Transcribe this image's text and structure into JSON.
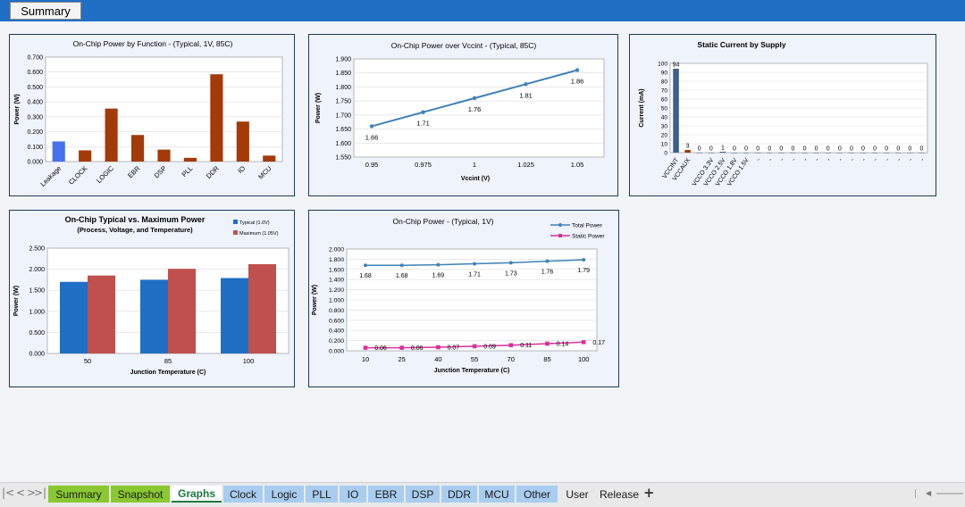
{
  "header": {
    "summary_label": "Summary"
  },
  "colors": {
    "topbar": "#1f6fc5",
    "func_blue": "#4472ee",
    "func_red": "#a33a08",
    "line_blue": "#3f82b7",
    "static_bar": "#3c5e8c",
    "typical": "#1f6fc5",
    "maximum": "#c0504d",
    "static_pink": "#d9309a"
  },
  "chart_data": [
    {
      "type": "bar",
      "title": "On-Chip Power by Function - (Typical, 1V, 85C)",
      "xlabel": "",
      "ylabel": "Power (W)",
      "categories": [
        "Leakage",
        "CLOCK",
        "LOGIC",
        "EBR",
        "DSP",
        "PLL",
        "DDR",
        "IO",
        "MCU"
      ],
      "values": [
        0.135,
        0.075,
        0.355,
        0.178,
        0.08,
        0.025,
        0.585,
        0.268,
        0.04
      ],
      "ylim": [
        0,
        0.7
      ],
      "yticks": [
        "0.000",
        "0.100",
        "0.200",
        "0.300",
        "0.400",
        "0.500",
        "0.600",
        "0.700"
      ],
      "grid": true
    },
    {
      "type": "line",
      "title": "On-Chip Power over Vccint - (Typical, 85C)",
      "xlabel": "Vccint (V)",
      "ylabel": "Power (W)",
      "x": [
        "0.95",
        "0.975",
        "1",
        "1.025",
        "1.05"
      ],
      "values": [
        1.66,
        1.71,
        1.76,
        1.81,
        1.86
      ],
      "labels": [
        "1.66",
        "1.71",
        "1.76",
        "1.81",
        "1.86"
      ],
      "ylim": [
        1.55,
        1.9
      ],
      "yticks": [
        "1.550",
        "1.600",
        "1.650",
        "1.700",
        "1.750",
        "1.800",
        "1.850",
        "1.900"
      ],
      "grid": true
    },
    {
      "type": "bar",
      "title": "Static Current by Supply",
      "xlabel": "",
      "ylabel": "Current (mA)",
      "categories": [
        "VCCINT",
        "VCCAUX",
        "",
        "VCCO 3.3V",
        "VCCO 2.5V",
        "VCCO 1.8V",
        "VCCO 1.5V",
        "-",
        "-",
        "-",
        "-",
        "-",
        "-",
        "-",
        "-",
        "-",
        "-",
        "-",
        "-",
        "-",
        "-",
        "-"
      ],
      "values": [
        94,
        3,
        0,
        0,
        1,
        0,
        0,
        0,
        0,
        0,
        0,
        0,
        0,
        0,
        0,
        0,
        0,
        0,
        0,
        0,
        0,
        0
      ],
      "labels": [
        "94",
        "3",
        "0",
        "0",
        "1",
        "0",
        "0",
        "0",
        "0",
        "0",
        "0",
        "0",
        "0",
        "0",
        "0",
        "0",
        "0",
        "0",
        "0",
        "0",
        "0",
        "0"
      ],
      "ylim": [
        0,
        100
      ],
      "yticks": [
        "0",
        "10",
        "20",
        "30",
        "40",
        "50",
        "60",
        "70",
        "80",
        "90",
        "100"
      ],
      "grid": true
    },
    {
      "type": "bar",
      "title": "On-Chip Typical vs. Maximum Power",
      "subtitle": "(Process, Voltage, and Temperature)",
      "xlabel": "Junction Temperature (C)",
      "ylabel": "Power (W)",
      "categories": [
        "50",
        "85",
        "100"
      ],
      "series": [
        {
          "name": "Typical (1.0V)",
          "values": [
            1.7,
            1.75,
            1.79
          ]
        },
        {
          "name": "Maximum (1.05V)",
          "values": [
            1.85,
            2.01,
            2.12
          ]
        }
      ],
      "ylim": [
        0,
        2.5
      ],
      "yticks": [
        "0.000",
        "0.500",
        "1.000",
        "1.500",
        "2.000",
        "2.500"
      ],
      "legend": "top-right",
      "grid": true
    },
    {
      "type": "line",
      "title": "On-Chip Power - (Typical, 1V)",
      "xlabel": "Junction Temperature (C)",
      "ylabel": "Power (W)",
      "x": [
        "10",
        "25",
        "40",
        "55",
        "70",
        "85",
        "100"
      ],
      "series": [
        {
          "name": "Total Power",
          "values": [
            1.68,
            1.68,
            1.69,
            1.71,
            1.73,
            1.76,
            1.79
          ],
          "labels": [
            "1.68",
            "1.68",
            "1.69",
            "1.71",
            "1.73",
            "1.76",
            "1.79"
          ]
        },
        {
          "name": "Static Power",
          "values": [
            0.06,
            0.06,
            0.07,
            0.09,
            0.11,
            0.14,
            0.17
          ],
          "labels": [
            "0.06",
            "0.06",
            "0.07",
            "0.09",
            "0.11",
            "0.14",
            "0.17"
          ]
        }
      ],
      "ylim": [
        0,
        2.0
      ],
      "yticks": [
        "0.000",
        "0.200",
        "0.400",
        "0.600",
        "0.800",
        "1.000",
        "1.200",
        "1.400",
        "1.600",
        "1.800",
        "2.000"
      ],
      "legend": "top-right",
      "grid": true
    }
  ],
  "sheet_tabs": [
    {
      "label": "Summary",
      "bg": "#8ac832",
      "fg": "#1a1a1a",
      "active": false
    },
    {
      "label": "Snapshot",
      "bg": "#8ac832",
      "fg": "#1a1a1a",
      "active": false
    },
    {
      "label": "Graphs",
      "bg": "#ffffff",
      "fg": "#1a7a3c",
      "active": true
    },
    {
      "label": "Clock",
      "bg": "#a8cdf0",
      "fg": "#1a1a1a",
      "active": false
    },
    {
      "label": "Logic",
      "bg": "#a8cdf0",
      "fg": "#1a1a1a",
      "active": false
    },
    {
      "label": "PLL",
      "bg": "#a8cdf0",
      "fg": "#1a1a1a",
      "active": false
    },
    {
      "label": "IO",
      "bg": "#a8cdf0",
      "fg": "#1a1a1a",
      "active": false
    },
    {
      "label": "EBR",
      "bg": "#a8cdf0",
      "fg": "#1a1a1a",
      "active": false
    },
    {
      "label": "DSP",
      "bg": "#a8cdf0",
      "fg": "#1a1a1a",
      "active": false
    },
    {
      "label": "DDR",
      "bg": "#a8cdf0",
      "fg": "#1a1a1a",
      "active": false
    },
    {
      "label": "MCU",
      "bg": "#a8cdf0",
      "fg": "#1a1a1a",
      "active": false
    },
    {
      "label": "Other",
      "bg": "#a8cdf0",
      "fg": "#1a1a1a",
      "active": false
    },
    {
      "label": "User",
      "bg": "#e9e9ea",
      "fg": "#1a1a1a",
      "active": false
    },
    {
      "label": "Release",
      "bg": "#e9e9ea",
      "fg": "#1a1a1a",
      "active": false
    }
  ],
  "nav": {
    "add_tab": "+",
    "first": "|<",
    "prev": "<",
    "next": ">",
    "last": ">|"
  }
}
